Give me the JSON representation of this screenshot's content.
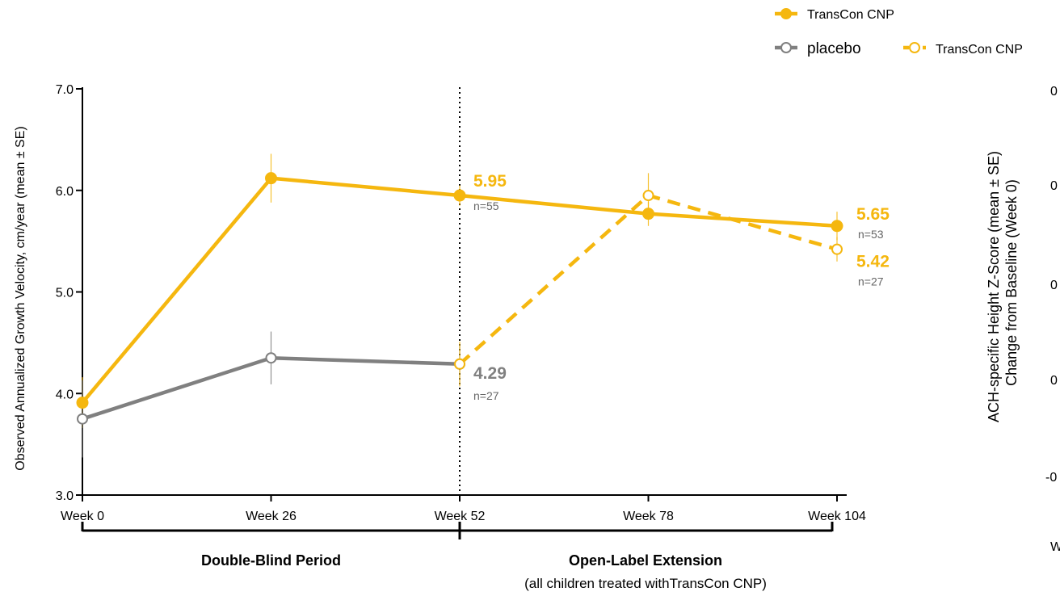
{
  "chart_data": [
    {
      "type": "line",
      "title": "",
      "ylabel": "Observed Annualized Growth Velocity, cm/year (mean ± SE)",
      "xlabel": "",
      "categories": [
        "Week 0",
        "Week 26",
        "Week 52",
        "Week 78",
        "Week 104"
      ],
      "ylim": [
        3.0,
        7.0
      ],
      "yticks": [
        "3.0",
        "4.0",
        "5.0",
        "6.0",
        "7.0"
      ],
      "grid": false,
      "legend_position": "top-right",
      "series": [
        {
          "name": "TransCon CNP",
          "style": "solid-filled",
          "color": "#F5B70F",
          "points": [
            {
              "x": "Week 0",
              "y": 3.91,
              "err": 0.25
            },
            {
              "x": "Week 26",
              "y": 6.12,
              "err": 0.24
            },
            {
              "x": "Week 52",
              "y": 5.95,
              "err": 0.1
            },
            {
              "x": "Week 78",
              "y": 5.77,
              "err": 0.12
            },
            {
              "x": "Week 104",
              "y": 5.65,
              "err": 0.14
            }
          ]
        },
        {
          "name": "placebo",
          "style": "solid-open",
          "color": "#808080",
          "points": [
            {
              "x": "Week 0",
              "y": 3.75,
              "err": 0.38
            },
            {
              "x": "Week 26",
              "y": 4.35,
              "err": 0.26
            },
            {
              "x": "Week 52",
              "y": 4.29,
              "err": 0.2
            }
          ]
        },
        {
          "name": "TransCon CNP",
          "style": "dashed-open",
          "color": "#F5B70F",
          "points": [
            {
              "x": "Week 52",
              "y": 4.29,
              "err": 0.22
            },
            {
              "x": "Week 78",
              "y": 5.95,
              "err": 0.22
            },
            {
              "x": "Week 104",
              "y": 5.42,
              "err": 0.12
            }
          ]
        }
      ],
      "annotations": [
        {
          "x": "Week 52",
          "value": "5.95",
          "n": "n=55",
          "color": "#F5B70F"
        },
        {
          "x": "Week 52",
          "value": "4.29",
          "n": "n=27",
          "color": "#808080"
        },
        {
          "x": "Week 104",
          "value": "5.65",
          "n": "n=53",
          "color": "#F5B70F"
        },
        {
          "x": "Week 104",
          "value": "5.42",
          "n": "n=27",
          "color": "#F5B70F"
        }
      ],
      "periods": [
        {
          "label": "Double-Blind Period",
          "sublabel": ""
        },
        {
          "label": "Open-Label Extension",
          "sublabel": "(all children treated withTransCon CNP"
        }
      ]
    },
    {
      "type": "line",
      "note": "partially visible, cut off at right edge",
      "ylabel_line1": "ACH-specific Height Z-Score (mean ± SE)",
      "ylabel_line2": "Change from Baseline (Week 0)",
      "ytick_fragments": [
        "0",
        "0",
        "0",
        "0",
        "-0"
      ],
      "xtick_fragment": "W"
    }
  ],
  "colors": {
    "transcon": "#F5B70F",
    "placebo": "#808080"
  }
}
